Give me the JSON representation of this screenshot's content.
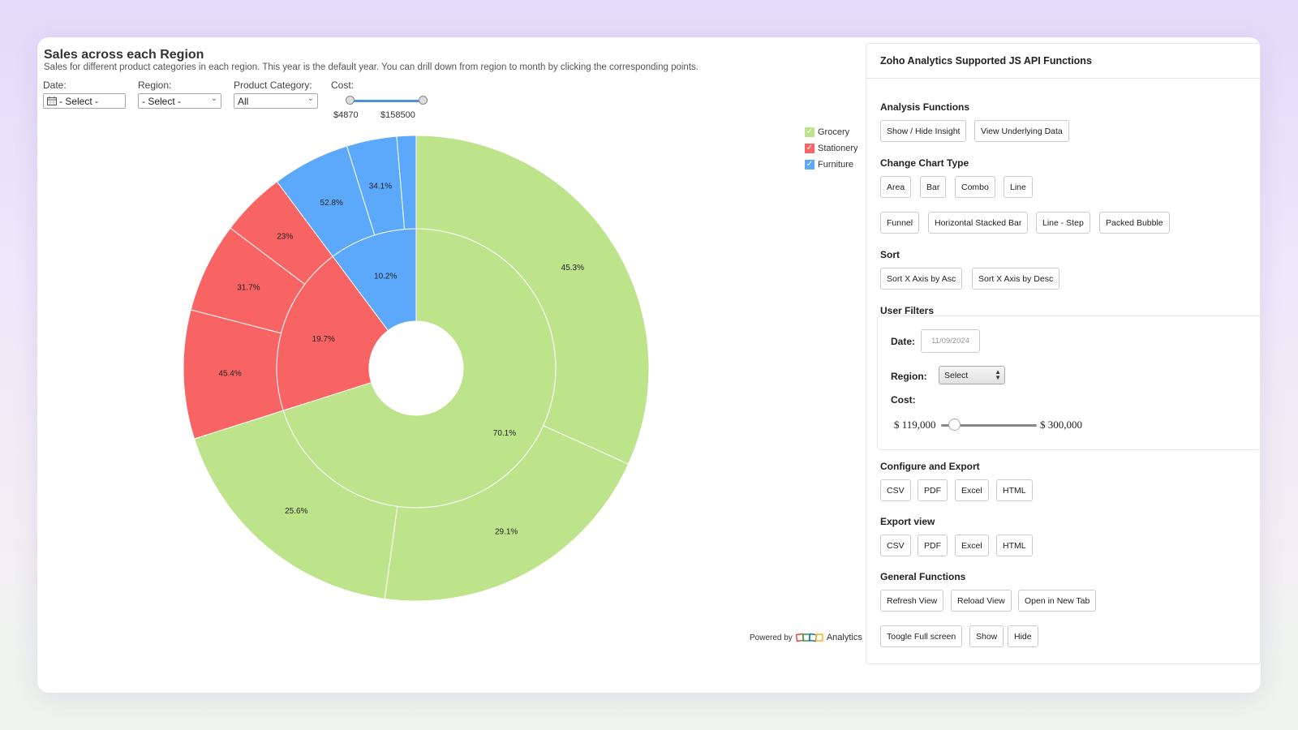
{
  "chart_panel": {
    "title": "Sales across each Region",
    "description": "Sales for different product categories in each region. This year is the default year. You can drill down from region to month by clicking the corresponding points.",
    "filters": {
      "date": {
        "label": "Date:",
        "value": "- Select -"
      },
      "region": {
        "label": "Region:",
        "value": "- Select -"
      },
      "category": {
        "label": "Product Category:",
        "value": "All"
      },
      "cost": {
        "label": "Cost:",
        "min": "$4870",
        "max": "$158500"
      }
    },
    "legend": [
      {
        "name": "Grocery",
        "color": "#bde38b"
      },
      {
        "name": "Stationery",
        "color": "#f86464"
      },
      {
        "name": "Furniture",
        "color": "#5ca8fb"
      }
    ],
    "powered_by": "Powered by",
    "analytics_label": "Analytics"
  },
  "chart_data": {
    "type": "sunburst",
    "inner": [
      {
        "category": "Grocery",
        "label": "70.1%",
        "value": 70.1
      },
      {
        "category": "Stationery",
        "label": "19.7%",
        "value": 19.7
      },
      {
        "category": "Furniture",
        "label": "10.2%",
        "value": 10.2
      }
    ],
    "outer": [
      {
        "category": "Grocery",
        "label": "45.3%",
        "value": 45.3
      },
      {
        "category": "Grocery",
        "label": "29.1%",
        "value": 29.1
      },
      {
        "category": "Grocery",
        "label": "25.6%",
        "value": 25.6
      },
      {
        "category": "Stationery",
        "label": "45.4%",
        "value": 45.4
      },
      {
        "category": "Stationery",
        "label": "31.7%",
        "value": 31.7
      },
      {
        "category": "Stationery",
        "label": "23%",
        "value": 23
      },
      {
        "category": "Furniture",
        "label": "52.8%",
        "value": 52.8
      },
      {
        "category": "Furniture",
        "label": "34.1%",
        "value": 34.1
      },
      {
        "category": "Furniture",
        "label": "",
        "value": 13.1
      }
    ]
  },
  "api_panel": {
    "title": "Zoho Analytics Supported JS API Functions",
    "sections": {
      "analysis": "Analysis Functions",
      "chart_type": "Change Chart Type",
      "sort": "Sort",
      "user_filters": "User Filters",
      "configure_export": "Configure and Export",
      "export_view": "Export view",
      "general": "General Functions"
    },
    "buttons": {
      "show_hide_insight": "Show / Hide Insight",
      "view_underlying": "View Underlying Data",
      "area": "Area",
      "bar": "Bar",
      "combo": "Combo",
      "line": "Line",
      "funnel": "Funnel",
      "hstacked": "Horizontal Stacked Bar",
      "line_step": "Line - Step",
      "packed_bubble": "Packed Bubble",
      "sort_asc": "Sort X Axis by Asc",
      "sort_desc": "Sort X Axis by Desc",
      "ce_csv": "CSV",
      "ce_pdf": "PDF",
      "ce_excel": "Excel",
      "ce_html": "HTML",
      "ev_csv": "CSV",
      "ev_pdf": "PDF",
      "ev_excel": "Excel",
      "ev_html": "HTML",
      "refresh": "Refresh View",
      "reload": "Reload View",
      "new_tab": "Open in New Tab",
      "fullscreen": "Toogle Full screen",
      "show": "Show",
      "hide": "Hide"
    },
    "user_filters": {
      "date_label": "Date:",
      "date_value": "11/09/2024",
      "region_label": "Region:",
      "region_value": "Select",
      "cost_label": "Cost:",
      "cost_min": "$ 119,000",
      "cost_max": "$ 300,000",
      "cost_level": 0.0
    }
  }
}
